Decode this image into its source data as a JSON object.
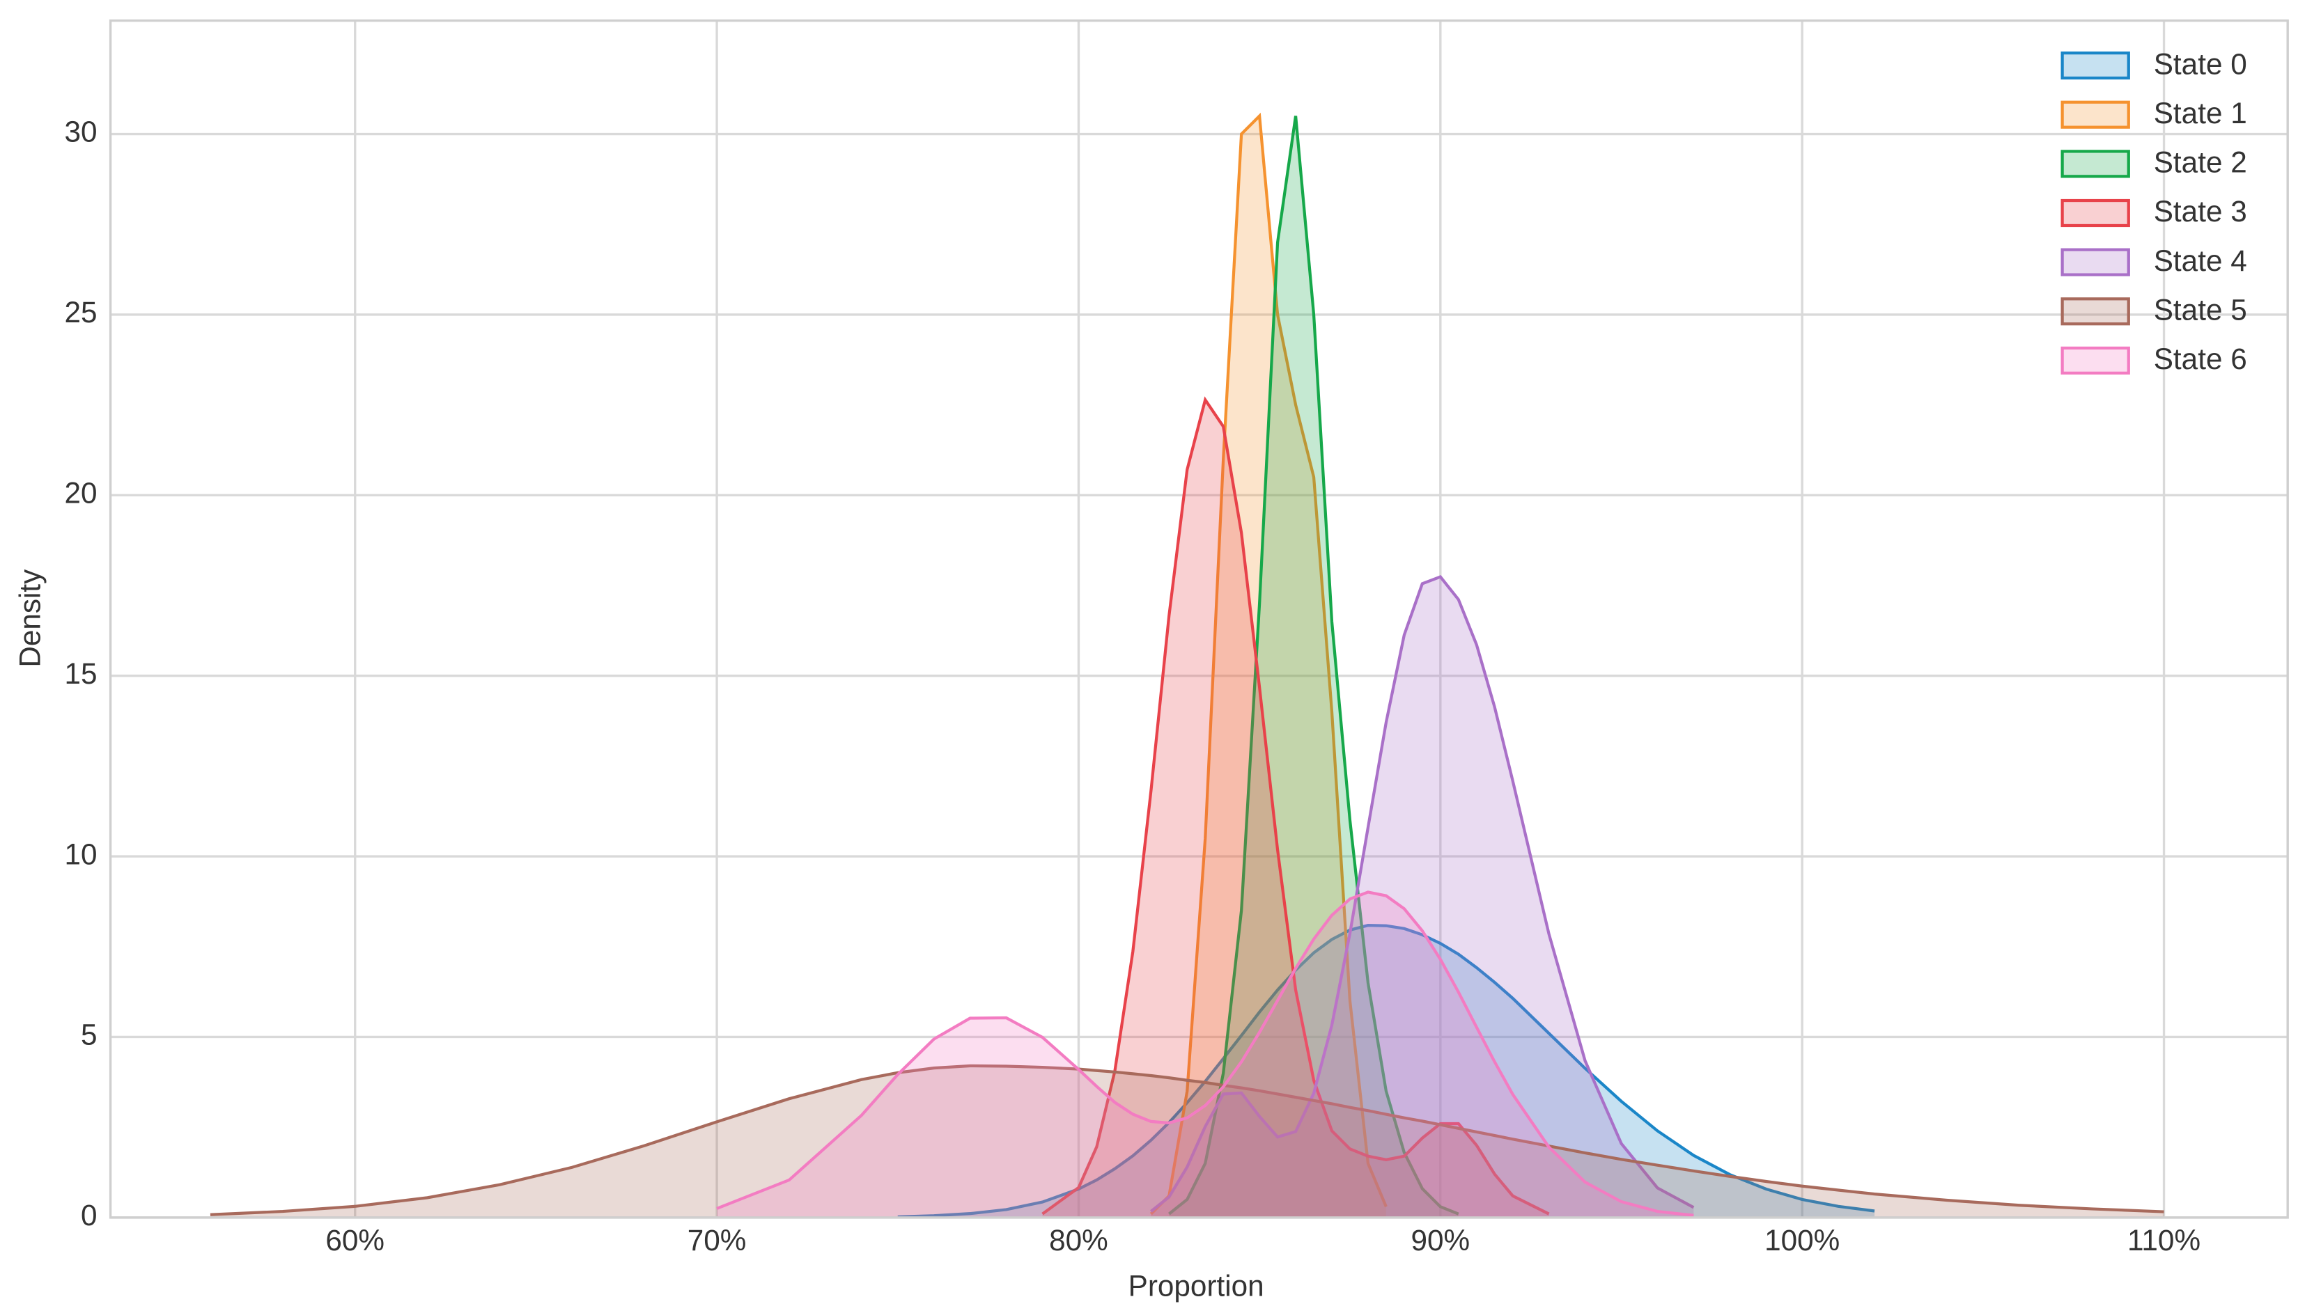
{
  "chart_data": {
    "type": "area",
    "xlabel": "Proportion",
    "ylabel": "Density",
    "x": [
      56,
      58,
      60,
      62,
      64,
      66,
      68,
      70,
      72,
      74,
      75,
      76,
      77,
      78,
      79,
      80,
      80.5,
      81,
      81.5,
      82,
      82.5,
      83,
      83.5,
      84,
      84.5,
      85,
      85.5,
      86,
      86.5,
      87,
      87.5,
      88,
      88.5,
      89,
      89.5,
      90,
      90.5,
      91,
      91.5,
      92,
      93,
      94,
      95,
      96,
      97,
      98,
      99,
      100,
      101,
      102,
      104,
      106,
      108,
      110
    ],
    "series": [
      {
        "name": "State 0",
        "color": "#1a86c8",
        "values": [
          null,
          null,
          null,
          null,
          null,
          null,
          null,
          null,
          null,
          null,
          0.02,
          0.05,
          0.11,
          0.22,
          0.43,
          0.79,
          1.04,
          1.35,
          1.71,
          2.14,
          2.63,
          3.18,
          3.77,
          4.4,
          5.04,
          5.69,
          6.3,
          6.85,
          7.33,
          7.7,
          7.96,
          8.09,
          8.08,
          8.0,
          7.83,
          7.59,
          7.29,
          6.92,
          6.51,
          6.07,
          5.1,
          4.13,
          3.22,
          2.4,
          1.72,
          1.19,
          0.79,
          0.5,
          0.31,
          0.18,
          null,
          null,
          null,
          null
        ]
      },
      {
        "name": "State 1",
        "color": "#f5922f",
        "values": [
          null,
          null,
          null,
          null,
          null,
          null,
          null,
          null,
          null,
          null,
          null,
          null,
          null,
          null,
          null,
          null,
          null,
          null,
          null,
          0.1,
          0.6,
          3.5,
          10.5,
          21,
          30,
          30.5,
          25,
          22.5,
          20.5,
          14,
          6,
          1.5,
          0.3,
          null,
          null,
          null,
          null,
          null,
          null,
          null,
          null,
          null,
          null,
          null,
          null,
          null,
          null,
          null,
          null,
          null,
          null,
          null,
          null,
          null
        ]
      },
      {
        "name": "State 2",
        "color": "#16a84a",
        "values": [
          null,
          null,
          null,
          null,
          null,
          null,
          null,
          null,
          null,
          null,
          null,
          null,
          null,
          null,
          null,
          null,
          null,
          null,
          null,
          null,
          0.1,
          0.5,
          1.5,
          4,
          8.5,
          17,
          27,
          30.5,
          25,
          16.5,
          11,
          6.5,
          3.5,
          1.8,
          0.8,
          0.3,
          0.1,
          null,
          null,
          null,
          null,
          null,
          null,
          null,
          null,
          null,
          null,
          null,
          null,
          null,
          null,
          null,
          null,
          null
        ]
      },
      {
        "name": "State 3",
        "color": "#e8424a",
        "values": [
          null,
          null,
          null,
          null,
          null,
          null,
          null,
          null,
          null,
          null,
          null,
          null,
          null,
          null,
          0.1,
          0.83,
          1.96,
          4.05,
          7.37,
          11.81,
          16.67,
          20.71,
          22.64,
          21.9,
          18.96,
          14.68,
          10.18,
          6.3,
          3.8,
          2.4,
          1.9,
          1.7,
          1.6,
          1.7,
          2.2,
          2.6,
          2.6,
          2.0,
          1.2,
          0.6,
          0.1,
          null,
          null,
          null,
          null,
          null,
          null,
          null,
          null,
          null,
          null,
          null,
          null,
          null
        ]
      },
      {
        "name": "State 4",
        "color": "#a970c8",
        "values": [
          null,
          null,
          null,
          null,
          null,
          null,
          null,
          null,
          null,
          null,
          null,
          null,
          null,
          null,
          null,
          null,
          null,
          null,
          null,
          0.17,
          0.57,
          1.4,
          2.52,
          3.42,
          3.45,
          2.8,
          2.23,
          2.38,
          3.44,
          5.33,
          7.87,
          10.8,
          13.71,
          16.13,
          17.55,
          17.74,
          17.11,
          15.86,
          14.13,
          12.09,
          7.85,
          4.34,
          2.05,
          0.82,
          0.28,
          null,
          null,
          null,
          null,
          null,
          null,
          null,
          null,
          null
        ]
      },
      {
        "name": "State 5",
        "color": "#a86a5c",
        "values": [
          0.08,
          0.17,
          0.31,
          0.55,
          0.91,
          1.39,
          1.99,
          2.65,
          3.29,
          3.82,
          4.01,
          4.14,
          4.2,
          4.19,
          4.16,
          4.11,
          4.07,
          4.03,
          3.98,
          3.93,
          3.87,
          3.8,
          3.74,
          3.66,
          3.59,
          3.51,
          3.42,
          3.33,
          3.24,
          3.15,
          3.05,
          2.96,
          2.86,
          2.76,
          2.67,
          2.57,
          2.47,
          2.37,
          2.27,
          2.17,
          1.98,
          1.79,
          1.61,
          1.45,
          1.29,
          1.14,
          1.0,
          0.87,
          0.76,
          0.65,
          0.48,
          0.34,
          0.24,
          0.16
        ]
      },
      {
        "name": "State 6",
        "color": "#f37cc2",
        "values": [
          null,
          null,
          null,
          null,
          null,
          null,
          null,
          0.25,
          1.04,
          2.83,
          3.96,
          4.94,
          5.52,
          5.53,
          4.99,
          4.1,
          3.63,
          3.19,
          2.86,
          2.66,
          2.62,
          2.76,
          3.1,
          3.62,
          4.31,
          5.13,
          6.01,
          6.9,
          7.71,
          8.37,
          8.82,
          9.01,
          8.91,
          8.55,
          7.94,
          7.15,
          6.24,
          5.27,
          4.31,
          3.41,
          1.95,
          0.98,
          0.44,
          0.17,
          0.06,
          null,
          null,
          null,
          null,
          null,
          null,
          null,
          null,
          null
        ]
      }
    ],
    "xlim": [
      53.24,
      113.42
    ],
    "ylim": [
      0,
      33.14
    ],
    "xticks": [
      {
        "value": 60,
        "label": "60%"
      },
      {
        "value": 70,
        "label": "70%"
      },
      {
        "value": 80,
        "label": "80%"
      },
      {
        "value": 90,
        "label": "90%"
      },
      {
        "value": 100,
        "label": "100%"
      },
      {
        "value": 110,
        "label": "110%"
      }
    ],
    "yticks": [
      0,
      5,
      10,
      15,
      20,
      25,
      30
    ],
    "grid": true,
    "legend": "upper right"
  }
}
